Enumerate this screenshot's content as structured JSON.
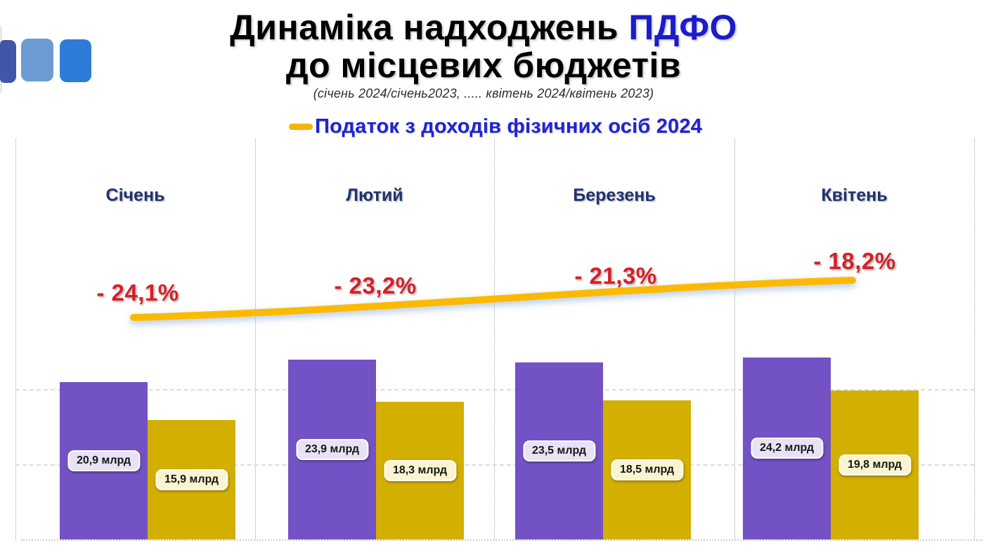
{
  "slide": {
    "background": "#FFFFFF"
  },
  "logo": {
    "squares": [
      {
        "name": "indigo-square",
        "color": "#4156A8"
      },
      {
        "name": "light-blue-square",
        "color": "#6C9BD3"
      },
      {
        "name": "blue-square",
        "color": "#2E7CD7"
      }
    ]
  },
  "title": {
    "line1_black": "Динаміка надходжень ",
    "line1_accent": "ПДФО",
    "accent_color": "#1C1CC9",
    "line2": "до місцевих бюджетів",
    "subtitle": "(січень 2024/січень2023, ..... квітень 2024/квітень 2023)"
  },
  "legend": {
    "label": "Податок з доходів фізичних осіб 2024",
    "text_color": "#2024D1",
    "line_color": "#F2B50D"
  },
  "chart_data": {
    "type": "bar",
    "subtype": "grouped bars with yellow trend line overlay",
    "categories": [
      "Січень",
      "Лютий",
      "Березень",
      "Квітень"
    ],
    "category_color": "#1E3370",
    "series": [
      {
        "name": "2023",
        "color": "#7352C5",
        "chip_bg": "#E8E2F5",
        "values": [
          20.9,
          23.9,
          23.5,
          24.2
        ],
        "value_labels": [
          "20,9 млрд",
          "23,9 млрд",
          "23,5 млрд",
          "24,2 млрд"
        ]
      },
      {
        "name": "2024",
        "color": "#D2AF00",
        "chip_bg": "#FBF4D0",
        "values": [
          15.9,
          18.3,
          18.5,
          19.8
        ],
        "value_labels": [
          "15,9 млрд",
          "18,3 млрд",
          "18,5 млрд",
          "19,8 млрд"
        ]
      }
    ],
    "yoy_labels": {
      "color": "#D42127",
      "values": [
        "- 24,1%",
        "- 23,2%",
        "- 21,3%",
        "- 18,2%"
      ]
    },
    "trend_line": {
      "color": "#FBBA00",
      "glow_color": "#A3BEE0"
    },
    "unit": "млрд",
    "ylim": [
      0,
      26.5
    ],
    "gridlines": [
      10,
      20
    ],
    "grid": "horizontal dashed gridlines (unlabeled) + dotted vertical column separators",
    "legend_position": "top-center"
  }
}
